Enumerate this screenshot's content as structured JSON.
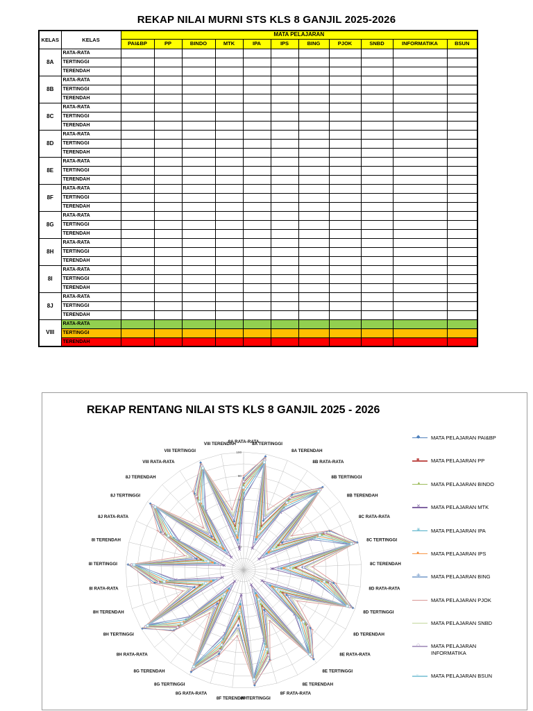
{
  "table_section": {
    "title": "REKAP NILAI MURNI STS KLS 8 GANJIL 2025-2026",
    "header": {
      "col1": "KELAS",
      "col2": "KELAS",
      "mata_pelajaran": "MATA PELAJARAN"
    },
    "header_fill": "#FFFF00",
    "subjects": [
      "PAI&BP",
      "PP",
      "BINDO",
      "MTK",
      "IPA",
      "IPS",
      "BING",
      "PJOK",
      "SNBD",
      "INFORMATIKA",
      "BSUN"
    ],
    "groups": [
      {
        "kelas": "8A",
        "rows": [
          {
            "label": "RATA-RATA"
          },
          {
            "label": "TERTINGGI"
          },
          {
            "label": "TERENDAH"
          }
        ]
      },
      {
        "kelas": "8B",
        "rows": [
          {
            "label": "RATA-RATA"
          },
          {
            "label": "TERTINGGI"
          },
          {
            "label": "TERENDAH"
          }
        ]
      },
      {
        "kelas": "8C",
        "rows": [
          {
            "label": "RATA-RATA"
          },
          {
            "label": "TERTINGGI"
          },
          {
            "label": "TERENDAH"
          }
        ]
      },
      {
        "kelas": "8D",
        "rows": [
          {
            "label": "RATA-RATA"
          },
          {
            "label": "TERTINGGI"
          },
          {
            "label": "TERENDAH"
          }
        ]
      },
      {
        "kelas": "8E",
        "rows": [
          {
            "label": "RATA-RATA"
          },
          {
            "label": "TERTINGGI"
          },
          {
            "label": "TERENDAH"
          }
        ]
      },
      {
        "kelas": "8F",
        "rows": [
          {
            "label": "RATA-RATA"
          },
          {
            "label": "TERTINGGI"
          },
          {
            "label": "TERENDAH"
          }
        ]
      },
      {
        "kelas": "8G",
        "rows": [
          {
            "label": "RATA-RATA"
          },
          {
            "label": "TERTINGGI"
          },
          {
            "label": "TERENDAH"
          }
        ]
      },
      {
        "kelas": "8H",
        "rows": [
          {
            "label": "RATA-RATA"
          },
          {
            "label": "TERTINGGI"
          },
          {
            "label": "TERENDAH"
          }
        ]
      },
      {
        "kelas": "8I",
        "rows": [
          {
            "label": "RATA-RATA"
          },
          {
            "label": "TERTINGGI"
          },
          {
            "label": "TERENDAH"
          }
        ]
      },
      {
        "kelas": "8J",
        "rows": [
          {
            "label": "RATA-RATA"
          },
          {
            "label": "TERTINGGI"
          },
          {
            "label": "TERENDAH"
          }
        ]
      },
      {
        "kelas": "VIII",
        "rows": [
          {
            "label": "RATA-RATA",
            "fill": "#92D050"
          },
          {
            "label": "TERTINGGI",
            "fill": "#FFC000"
          },
          {
            "label": "TERENDAH",
            "fill": "#FF0000"
          }
        ]
      }
    ],
    "cells_empty": true
  },
  "chart_section": {
    "title": "REKAP RENTANG NILAI STS  KLS 8 GANJIL 2025 - 2026"
  },
  "chart_data": {
    "type": "radar",
    "title": "REKAP RENTANG NILAI STS  KLS 8 GANJIL 2025 - 2026",
    "max": 100,
    "grid_step": 10,
    "ticks": [
      20,
      40,
      60,
      80,
      100
    ],
    "legend_position": "right",
    "categories": [
      "8A RATA-RATA",
      "8A TERTINGGI",
      "8A TERENDAH",
      "8B RATA-RATA",
      "8B TERTINGGI",
      "8B TERENDAH",
      "8C RATA-RATA",
      "8C TERTINGGI",
      "8C TERENDAH",
      "8D RATA-RATA",
      "8D TERTINGGI",
      "8D TERENDAH",
      "8E RATA-RATA",
      "8E TERTINGGI",
      "8E TERENDAH",
      "8F RATA-RATA",
      "8F TERTINGGI",
      "8F TERENDAH",
      "8G RATA-RATA",
      "8G TERTINGGI",
      "8G TERENDAH",
      "8H RATA-RATA",
      "8H TERTINGGI",
      "8H TERENDAH",
      "8I RATA-RATA",
      "8I TERTINGGI",
      "8I TERENDAH",
      "8J RATA-RATA",
      "8J TERTINGGI",
      "8J TERENDAH",
      "VIII RATA-RATA",
      "VIII TERTINGGI",
      "VIII TERENDAH"
    ],
    "series": [
      {
        "name": "MATA PELAJARAN PAI&BP",
        "color": "#4F81BD",
        "marker": "diamond",
        "values": [
          78,
          98,
          45,
          76,
          97,
          40,
          80,
          99,
          50,
          77,
          98,
          42,
          75,
          96,
          38,
          79,
          98,
          47,
          74,
          97,
          36,
          78,
          99,
          44,
          76,
          98,
          41,
          77,
          97,
          39,
          77,
          98,
          42
        ]
      },
      {
        "name": "MATA PELAJARAN PP",
        "color": "#C0504D",
        "marker": "square",
        "values": [
          74,
          95,
          40,
          72,
          94,
          36,
          75,
          96,
          44,
          73,
          95,
          38,
          71,
          93,
          34,
          74,
          95,
          41,
          70,
          94,
          32,
          73,
          96,
          39,
          72,
          95,
          37,
          74,
          94,
          35,
          73,
          95,
          38
        ]
      },
      {
        "name": "MATA PELAJARAN BINDO",
        "color": "#9BBB59",
        "marker": "triangle",
        "values": [
          72,
          94,
          38,
          70,
          93,
          34,
          73,
          95,
          42,
          71,
          94,
          36,
          69,
          92,
          32,
          72,
          94,
          39,
          68,
          93,
          30,
          71,
          95,
          37,
          70,
          94,
          35,
          72,
          93,
          33,
          71,
          94,
          36
        ]
      },
      {
        "name": "MATA PELAJARAN MTK",
        "color": "#8064A2",
        "marker": "x",
        "values": [
          60,
          92,
          20,
          58,
          91,
          16,
          62,
          93,
          24,
          59,
          92,
          18,
          57,
          90,
          14,
          61,
          92,
          21,
          56,
          91,
          12,
          60,
          93,
          19,
          58,
          92,
          17,
          60,
          91,
          15,
          59,
          92,
          18
        ]
      },
      {
        "name": "MATA PELAJARAN IPA",
        "color": "#4BACC6",
        "marker": "asterisk",
        "values": [
          65,
          93,
          28,
          63,
          92,
          24,
          66,
          94,
          32,
          64,
          93,
          26,
          62,
          91,
          22,
          65,
          93,
          29,
          61,
          92,
          20,
          64,
          94,
          27,
          63,
          93,
          25,
          65,
          92,
          23,
          64,
          93,
          26
        ]
      },
      {
        "name": "MATA PELAJARAN IPS",
        "color": "#F79646",
        "marker": "circle",
        "values": [
          68,
          94,
          30,
          66,
          93,
          26,
          69,
          95,
          34,
          67,
          94,
          28,
          65,
          92,
          24,
          68,
          94,
          31,
          64,
          93,
          22,
          67,
          95,
          29,
          66,
          94,
          27,
          68,
          93,
          25,
          67,
          94,
          28
        ]
      },
      {
        "name": "MATA PELAJARAN BING",
        "color": "#95B3D7",
        "marker": "plus",
        "values": [
          62,
          90,
          25,
          60,
          89,
          21,
          63,
          91,
          29,
          61,
          90,
          23,
          59,
          88,
          19,
          62,
          90,
          26,
          58,
          89,
          17,
          61,
          91,
          24,
          60,
          90,
          22,
          62,
          89,
          20,
          61,
          90,
          23
        ]
      },
      {
        "name": "MATA PELAJARAN PJOK",
        "color": "#D99694",
        "marker": "dash",
        "values": [
          80,
          97,
          55,
          78,
          96,
          50,
          81,
          98,
          58,
          79,
          97,
          52,
          77,
          95,
          48,
          80,
          97,
          56,
          76,
          96,
          46,
          79,
          98,
          54,
          78,
          97,
          51,
          80,
          96,
          49,
          79,
          97,
          52
        ]
      },
      {
        "name": "MATA PELAJARAN SNBD",
        "color": "#C3D69B",
        "marker": "dash",
        "values": [
          76,
          96,
          50,
          74,
          95,
          45,
          77,
          97,
          53,
          75,
          96,
          47,
          73,
          94,
          43,
          76,
          96,
          51,
          72,
          95,
          41,
          75,
          97,
          49,
          74,
          96,
          46,
          76,
          95,
          44,
          75,
          96,
          47
        ]
      },
      {
        "name": "MATA PELAJARAN INFORMATIKA",
        "color": "#B3A2C7",
        "marker": "diamond-open",
        "values": [
          75,
          95,
          48,
          73,
          94,
          43,
          76,
          96,
          51,
          74,
          95,
          45,
          72,
          93,
          41,
          75,
          95,
          49,
          71,
          94,
          39,
          74,
          96,
          47,
          73,
          95,
          44,
          75,
          94,
          42,
          74,
          95,
          45
        ]
      },
      {
        "name": "MATA PELAJARAN BSUN",
        "color": "#93CDDD",
        "marker": "square-open",
        "values": [
          70,
          93,
          35,
          68,
          92,
          30,
          71,
          94,
          38,
          69,
          93,
          32,
          67,
          91,
          28,
          70,
          93,
          36,
          66,
          92,
          26,
          69,
          94,
          34,
          68,
          93,
          31,
          70,
          92,
          29,
          69,
          93,
          32
        ]
      }
    ]
  }
}
